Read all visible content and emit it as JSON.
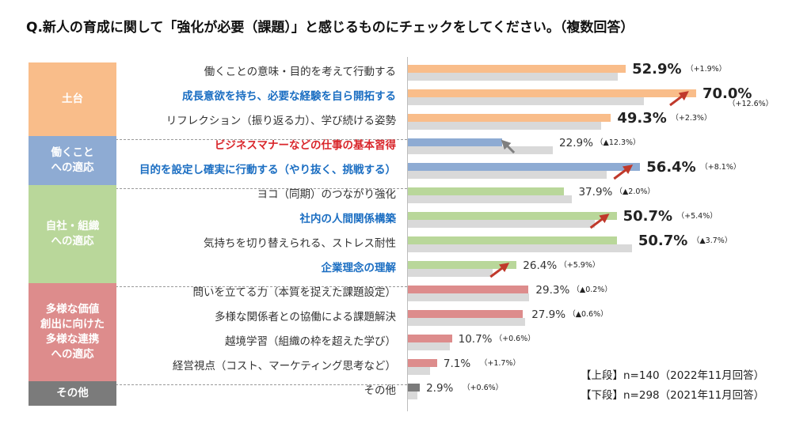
{
  "title": "Q.新人の育成に関して「強化が必要（課題）」と感じるものにチェックをしてください。（複数回答）",
  "colors": {
    "foundation": "#f9bd8a",
    "adapt_work": "#8eabd3",
    "organization": "#b9d79a",
    "diversity": "#dd8c8c",
    "other": "#7b7b7b",
    "previous_year": "#d9d9d9",
    "arrow_up": "#c0392b",
    "arrow_down": "#7f7f7f"
  },
  "groups": [
    {
      "id": "foundation",
      "label": "土台"
    },
    {
      "id": "adapt_work",
      "label": "働くこと\nへの適応"
    },
    {
      "id": "organization",
      "label": "自社・組織\nへの適応"
    },
    {
      "id": "diversity",
      "label": "多様な価値\n創出に向けた\n多様な連携\nへの適応"
    },
    {
      "id": "other",
      "label": "その他"
    }
  ],
  "legend": {
    "upper": "【上段】n=140（2022年11月回答）",
    "lower": "【下段】n=298（2021年11月回答）"
  },
  "chart_data": {
    "type": "bar",
    "orientation": "horizontal",
    "value_unit": "%",
    "series": [
      {
        "name": "【上段】n=140（2022年11月回答）",
        "values": [
          52.9,
          70.0,
          49.3,
          22.9,
          56.4,
          37.9,
          50.7,
          50.7,
          26.4,
          29.3,
          27.9,
          10.7,
          7.1,
          2.9
        ]
      },
      {
        "name": "【下段】n=298（2021年11月回答）",
        "values": [
          51.0,
          57.4,
          47.0,
          35.2,
          48.3,
          39.9,
          45.3,
          54.4,
          20.5,
          29.5,
          28.5,
          10.1,
          5.4,
          2.3
        ]
      }
    ],
    "items": [
      {
        "label": "働くことの意味・目的を考えて行動する",
        "group": "foundation",
        "style": "normal",
        "value": 52.9,
        "prev": 51.0,
        "value_label": "52.9%",
        "change": "（+1.9%）",
        "big": true,
        "arrow": "none"
      },
      {
        "label": "成長意欲を持ち、必要な経験を自ら開拓する",
        "group": "foundation",
        "style": "blue",
        "value": 70.0,
        "prev": 57.4,
        "value_label": "70.0%",
        "change": "（+12.6%）",
        "big": true,
        "arrow": "up"
      },
      {
        "label": "リフレクション（振り返る力）、学び続ける姿勢",
        "group": "foundation",
        "style": "normal",
        "value": 49.3,
        "prev": 47.0,
        "value_label": "49.3%",
        "change": "（+2.3%）",
        "big": true,
        "arrow": "none"
      },
      {
        "label": "ビジネスマナーなどの仕事の基本習得",
        "group": "adapt_work",
        "style": "red",
        "value": 22.9,
        "prev": 35.2,
        "value_label": "22.9%",
        "change": "（▲12.3%）",
        "big": false,
        "arrow": "down"
      },
      {
        "label": "目的を設定し確実に行動する（やり抜く、挑戦する）",
        "group": "adapt_work",
        "style": "blue",
        "value": 56.4,
        "prev": 48.3,
        "value_label": "56.4%",
        "change": "（+8.1%）",
        "big": true,
        "arrow": "up"
      },
      {
        "label": "ヨコ（同期）のつながり強化",
        "group": "organization",
        "style": "normal",
        "value": 37.9,
        "prev": 39.9,
        "value_label": "37.9%",
        "change": "（▲2.0%）",
        "big": false,
        "arrow": "none"
      },
      {
        "label": "社内の人間関係構築",
        "group": "organization",
        "style": "blue",
        "value": 50.7,
        "prev": 45.3,
        "value_label": "50.7%",
        "change": "（+5.4%）",
        "big": true,
        "arrow": "up"
      },
      {
        "label": "気持ちを切り替えられる、ストレス耐性",
        "group": "organization",
        "style": "normal",
        "value": 50.7,
        "prev": 54.4,
        "value_label": "50.7%",
        "change": "（▲3.7%）",
        "big": true,
        "arrow": "none"
      },
      {
        "label": "企業理念の理解",
        "group": "organization",
        "style": "blue",
        "value": 26.4,
        "prev": 20.5,
        "value_label": "26.4%",
        "change": "（+5.9%）",
        "big": false,
        "arrow": "up"
      },
      {
        "label": "問いを立てる力（本質を捉えた課題設定）",
        "group": "diversity",
        "style": "normal",
        "value": 29.3,
        "prev": 29.5,
        "value_label": "29.3%",
        "change": "（▲0.2%）",
        "big": false,
        "arrow": "none"
      },
      {
        "label": "多様な関係者との協働による課題解決",
        "group": "diversity",
        "style": "normal",
        "value": 27.9,
        "prev": 28.5,
        "value_label": "27.9%",
        "change": "（▲0.6%）",
        "big": false,
        "arrow": "none"
      },
      {
        "label": "越境学習（組織の枠を超えた学び）",
        "group": "diversity",
        "style": "normal",
        "value": 10.7,
        "prev": 10.1,
        "value_label": "10.7%",
        "change": "（+0.6%）",
        "big": false,
        "arrow": "none"
      },
      {
        "label": "経営視点（コスト、マーケティング思考など）",
        "group": "diversity",
        "style": "normal",
        "value": 7.1,
        "prev": 5.4,
        "value_label": "7.1%",
        "change": "（+1.7%）",
        "big": false,
        "arrow": "none"
      },
      {
        "label": "その他",
        "group": "other",
        "style": "normal",
        "value": 2.9,
        "prev": 2.3,
        "value_label": "2.9%",
        "change": "（+0.6%）",
        "big": false,
        "arrow": "none"
      }
    ]
  }
}
